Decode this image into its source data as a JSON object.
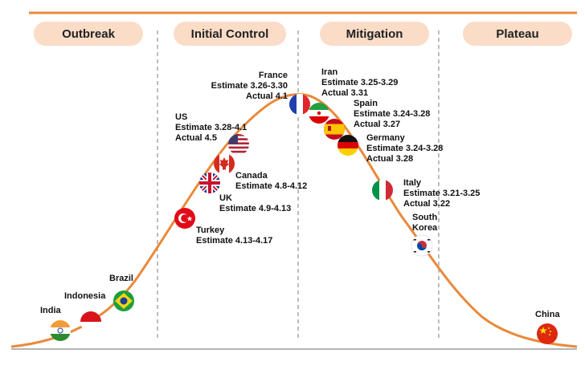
{
  "colors": {
    "accent": "#e98a3b",
    "phase_bg": "#fbdcc7",
    "divider": "#9a9a9a"
  },
  "phases": [
    {
      "label": "Outbreak"
    },
    {
      "label": "Initial Control"
    },
    {
      "label": "Mitigation"
    },
    {
      "label": "Plateau"
    }
  ],
  "countries": {
    "india": {
      "name": "India",
      "flag_icon": "india-flag-icon"
    },
    "indonesia": {
      "name": "Indonesia",
      "flag_icon": "indonesia-flag-icon"
    },
    "brazil": {
      "name": "Brazil",
      "flag_icon": "brazil-flag-icon"
    },
    "turkey": {
      "name": "Turkey",
      "estimate": "Estimate 4.13-4.17",
      "flag_icon": "turkey-flag-icon"
    },
    "uk": {
      "name": "UK",
      "estimate": "Estimate 4.9-4.13",
      "flag_icon": "uk-flag-icon"
    },
    "canada": {
      "name": "Canada",
      "estimate": "Estimate 4.8-4.12",
      "flag_icon": "canada-flag-icon"
    },
    "us": {
      "name": "US",
      "estimate": "Estimate 3.28-4.1",
      "actual": "Actual 4.5",
      "flag_icon": "us-flag-icon"
    },
    "france": {
      "name": "France",
      "estimate": "Estimate 3.26-3.30",
      "actual": "Actual 4.1",
      "flag_icon": "france-flag-icon"
    },
    "iran": {
      "name": "Iran",
      "estimate": "Estimate 3.25-3.29",
      "actual": "Actual 3.31",
      "flag_icon": "iran-flag-icon"
    },
    "spain": {
      "name": "Spain",
      "estimate": "Estimate 3.24-3.28",
      "actual": "Actual 3.27",
      "flag_icon": "spain-flag-icon"
    },
    "germany": {
      "name": "Germany",
      "estimate": "Estimate 3.24-3.28",
      "actual": "Actual 3.28",
      "flag_icon": "germany-flag-icon"
    },
    "italy": {
      "name": "Italy",
      "estimate": "Estimate 3.21-3.25",
      "actual": "Actual 3.22",
      "flag_icon": "italy-flag-icon"
    },
    "south_korea": {
      "name_line1": "South",
      "name_line2": "Korea",
      "flag_icon": "south-korea-flag-icon"
    },
    "china": {
      "name": "China",
      "flag_icon": "china-flag-icon"
    }
  }
}
